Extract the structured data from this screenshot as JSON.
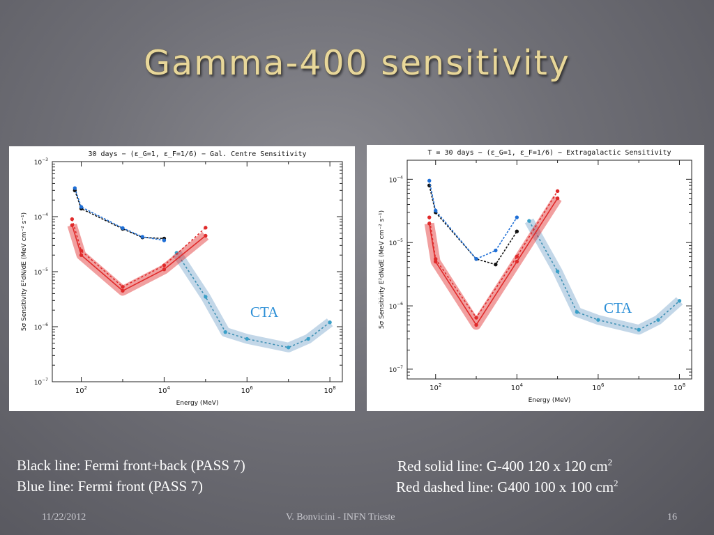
{
  "slide": {
    "title": "Gamma-400 sensitivity",
    "legend": {
      "left": [
        "Black line: Fermi front+back  (PASS 7)",
        "Blue line: Fermi front (PASS 7)"
      ],
      "right": [
        {
          "text": "Red solid line: G-400 120 x 120 cm",
          "sup": "2"
        },
        {
          "text": "Red dashed line: G400 100 x 100 cm",
          "sup": "2"
        }
      ]
    },
    "footer": {
      "date": "11/22/2012",
      "author": "V. Bonvicini - INFN Trieste",
      "page": "16"
    },
    "colors": {
      "red": "#e02a2a",
      "black": "#111111",
      "blue": "#1f6fd6",
      "cta": "#7aa6cc",
      "title": "#e8d79a"
    }
  },
  "chart_data": [
    {
      "type": "line",
      "title": "30 days − (ε_G=1, ε_F=1/6) − Gal. Centre Sensitivity",
      "xlabel": "Energy (MeV)",
      "ylabel": "5σ Sensitivity E²dN/dE (MeV cm⁻² s⁻¹)",
      "xscale": "log",
      "yscale": "log",
      "xlim": [
        20,
        200000000
      ],
      "ylim": [
        1e-07,
        0.001
      ],
      "x_ticks": [
        {
          "v": 100,
          "b": "10",
          "e": "2"
        },
        {
          "v": 10000,
          "b": "10",
          "e": "4"
        },
        {
          "v": 1000000,
          "b": "10",
          "e": "6"
        },
        {
          "v": 100000000,
          "b": "10",
          "e": "8"
        }
      ],
      "y_ticks": [
        {
          "v": 0.001,
          "b": "10",
          "e": "−3"
        },
        {
          "v": 0.0001,
          "b": "10",
          "e": "−4"
        },
        {
          "v": 1e-05,
          "b": "10",
          "e": "−5"
        },
        {
          "v": 1e-06,
          "b": "10",
          "e": "−6"
        },
        {
          "v": 1e-07,
          "b": "10",
          "e": "−7"
        }
      ],
      "annotation": "CTA",
      "series": [
        {
          "key": "fermi_front_back",
          "style": "black-dash",
          "x": [
            70,
            100,
            1000,
            3000,
            10000
          ],
          "y": [
            0.0003,
            0.00014,
            6e-05,
            4.2e-05,
            4e-05
          ]
        },
        {
          "key": "fermi_front",
          "style": "blue-dash",
          "x": [
            70,
            100,
            1000,
            3000,
            10000
          ],
          "y": [
            0.00033,
            0.00015,
            6.2e-05,
            4.3e-05,
            3.7e-05
          ]
        },
        {
          "key": "g400_120",
          "style": "red-solid",
          "x": [
            60,
            100,
            1000,
            10000,
            100000
          ],
          "y": [
            7e-05,
            2e-05,
            4.5e-06,
            1.1e-05,
            4.5e-05
          ]
        },
        {
          "key": "g400_100",
          "style": "red-dash",
          "x": [
            60,
            100,
            1000,
            10000,
            100000
          ],
          "y": [
            9e-05,
            2.4e-05,
            5.3e-06,
            1.3e-05,
            6.3e-05
          ]
        },
        {
          "key": "cta",
          "style": "cta",
          "x": [
            20000,
            100000,
            300000,
            1000000,
            10000000,
            30000000,
            100000000
          ],
          "y": [
            2.2e-05,
            3.5e-06,
            8e-07,
            6e-07,
            4.2e-07,
            6e-07,
            1.2e-06
          ]
        }
      ]
    },
    {
      "type": "line",
      "title": "T = 30 days − (ε_G=1, ε_F=1/6) − Extragalactic Sensitivity",
      "xlabel": "Energy (MeV)",
      "ylabel": "5σ Sensitivity E²dN/dE (MeV cm⁻² s⁻¹)",
      "xscale": "log",
      "yscale": "log",
      "xlim": [
        20,
        200000000
      ],
      "ylim": [
        7e-08,
        0.0002
      ],
      "x_ticks": [
        {
          "v": 100,
          "b": "10",
          "e": "2"
        },
        {
          "v": 10000,
          "b": "10",
          "e": "4"
        },
        {
          "v": 1000000,
          "b": "10",
          "e": "6"
        },
        {
          "v": 100000000,
          "b": "10",
          "e": "8"
        }
      ],
      "y_ticks": [
        {
          "v": 0.0001,
          "b": "10",
          "e": "−4"
        },
        {
          "v": 1e-05,
          "b": "10",
          "e": "−5"
        },
        {
          "v": 1e-06,
          "b": "10",
          "e": "−6"
        },
        {
          "v": 1e-07,
          "b": "10",
          "e": "−7"
        }
      ],
      "annotation": "CTA",
      "series": [
        {
          "key": "fermi_front_back",
          "style": "black-dash",
          "x": [
            70,
            100,
            1000,
            3000,
            10000
          ],
          "y": [
            8e-05,
            3e-05,
            5.5e-06,
            4.5e-06,
            1.5e-05
          ]
        },
        {
          "key": "fermi_front",
          "style": "blue-dash",
          "x": [
            70,
            100,
            1000,
            3000,
            10000
          ],
          "y": [
            9.5e-05,
            3.2e-05,
            5.5e-06,
            7.5e-06,
            2.5e-05
          ]
        },
        {
          "key": "g400_120",
          "style": "red-solid",
          "x": [
            70,
            100,
            1000,
            10000,
            100000
          ],
          "y": [
            2e-05,
            5e-06,
            5e-07,
            5e-06,
            5e-05
          ]
        },
        {
          "key": "g400_100",
          "style": "red-dash",
          "x": [
            70,
            100,
            1000,
            10000,
            100000
          ],
          "y": [
            2.5e-05,
            5.5e-06,
            6.5e-07,
            6e-06,
            6.5e-05
          ]
        },
        {
          "key": "cta",
          "style": "cta",
          "x": [
            20000,
            100000,
            300000,
            1000000,
            10000000,
            30000000,
            100000000
          ],
          "y": [
            2.2e-05,
            3.5e-06,
            8e-07,
            6e-07,
            4.2e-07,
            6e-07,
            1.2e-06
          ]
        }
      ]
    }
  ]
}
